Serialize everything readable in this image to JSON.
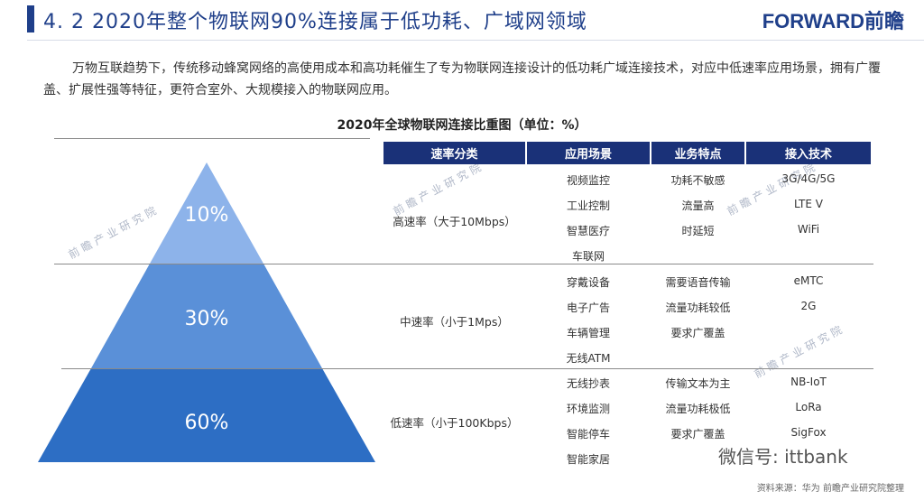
{
  "header": {
    "title": "4. 2  2020年整个物联网90%连接属于低功耗、广域网领域",
    "logo": "FORWARD前瞻"
  },
  "intro": "万物互联趋势下，传统移动蜂窝网络的高使用成本和高功耗催生了专为物联网连接设计的低功耗广域连接技术，对应中低速率应用场景，拥有广覆盖、扩展性强等特征，更符合室外、大规模接入的物联网应用。",
  "chart_title": "2020年全球物联网连接比重图（单位：%）",
  "pyramid": {
    "levels": [
      {
        "pct": "10%",
        "color": "#8db3ea"
      },
      {
        "pct": "30%",
        "color": "#5a90d8"
      },
      {
        "pct": "60%",
        "color": "#2d6ec4"
      }
    ]
  },
  "table": {
    "headers": [
      "速率分类",
      "应用场景",
      "业务特点",
      "接入技术"
    ],
    "rows": [
      {
        "category": "高速率（大于10Mbps）",
        "scenarios": [
          "视频监控",
          "工业控制",
          "智慧医疗",
          "车联网"
        ],
        "features": [
          "功耗不敏感",
          "流量高",
          "时延短"
        ],
        "techs": [
          "3G/4G/5G",
          "LTE V",
          "WiFi"
        ]
      },
      {
        "category": "中速率（小于1Mps）",
        "scenarios": [
          "穿戴设备",
          "电子广告",
          "车辆管理",
          "无线ATM"
        ],
        "features": [
          "需要语音传输",
          "流量功耗较低",
          "要求广覆盖"
        ],
        "techs": [
          "eMTC",
          "2G"
        ]
      },
      {
        "category": "低速率（小于100Kbps）",
        "scenarios": [
          "无线抄表",
          "环境监测",
          "智能停车",
          "智能家居"
        ],
        "features": [
          "传输文本为主",
          "流量功耗极低",
          "要求广覆盖"
        ],
        "techs": [
          "NB-IoT",
          "LoRa",
          "SigFox"
        ]
      }
    ]
  },
  "watermark": "前瞻产业研究院",
  "wechat": "微信号: ittbank",
  "source": "资料来源：华为  前瞻产业研究院整理"
}
